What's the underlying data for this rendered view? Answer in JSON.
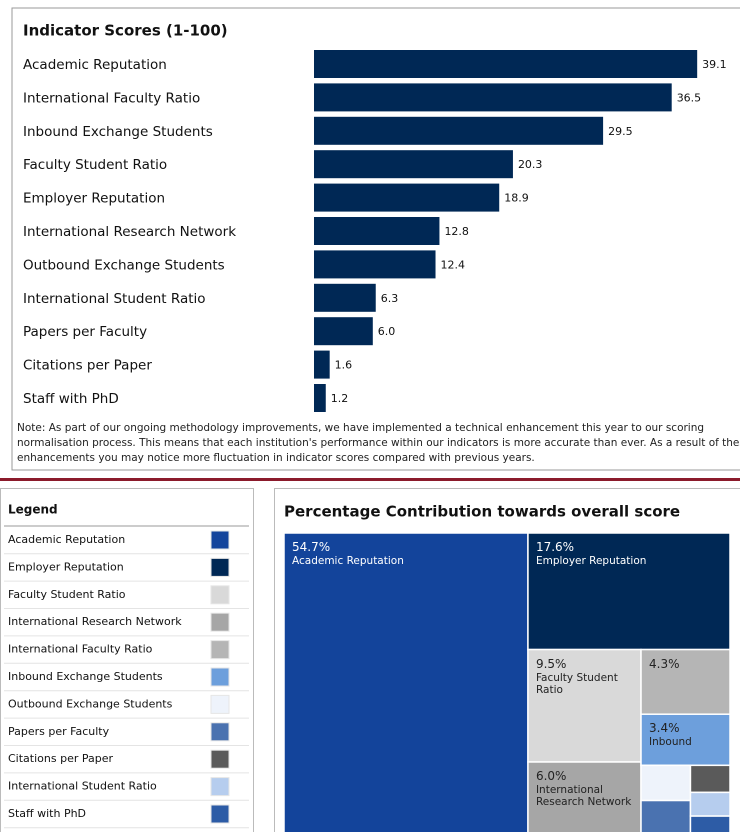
{
  "chart_data": [
    {
      "type": "barh",
      "title": "Indicator Scores (1-100)",
      "categories": [
        "Academic Reputation",
        "International Faculty Ratio",
        "Inbound Exchange Students",
        "Faculty Student Ratio",
        "Employer Reputation",
        "International Research Network",
        "Outbound Exchange Students",
        "International Student Ratio",
        "Papers per Faculty",
        "Citations per Paper",
        "Staff with PhD"
      ],
      "values": [
        39.1,
        36.5,
        29.5,
        20.3,
        18.9,
        12.8,
        12.4,
        6.3,
        6.0,
        1.6,
        1.2
      ],
      "value_labels": [
        "39.1",
        "36.5",
        "29.5",
        "20.3",
        "18.9",
        "12.8",
        "12.4",
        "6.3",
        "6.0",
        "1.6",
        "1.2"
      ],
      "color": "#002855",
      "xlim": [
        0,
        40
      ],
      "note": "Note: As part of our ongoing methodology improvements, we have implemented a technical enhancement this year to our scoring normalisation process. This means that each institution's performance within our indicators is more accurate than ever. As a result of these enhancements you may notice more fluctuation in indicator scores compared with previous years."
    },
    {
      "type": "treemap",
      "title": "Percentage Contribution towards overall score",
      "legend_title": "Legend",
      "categories": [
        "Academic Reputation",
        "Employer Reputation",
        "Faculty Student Ratio",
        "International Research Network",
        "International Faculty Ratio",
        "Inbound Exchange Students",
        "Outbound Exchange Students",
        "Papers per Faculty",
        "Citations per Paper",
        "International Student Ratio",
        "Staff with PhD"
      ],
      "values": [
        54.7,
        17.6,
        9.5,
        6.0,
        4.3,
        3.4,
        1.3,
        1.2,
        0.8,
        0.7,
        0.5
      ],
      "value_labels": [
        "54.7%",
        "17.6%",
        "9.5%",
        "6.0%",
        "4.3%",
        "3.4%",
        null,
        null,
        null,
        null,
        null
      ],
      "box_labels": [
        "Academic Reputation",
        "Employer Reputation",
        "Faculty Student Ratio",
        "International Research Network",
        null,
        "Inbound",
        null,
        null,
        null,
        null,
        null
      ],
      "colors": [
        "#13449b",
        "#002855",
        "#d9d9d9",
        "#a6a6a6",
        "#b5b5b5",
        "#6d9fdc",
        "#eef3fb",
        "#4a72b0",
        "#5a5a5a",
        "#b6cdee",
        "#2d5ca6"
      ]
    }
  ]
}
